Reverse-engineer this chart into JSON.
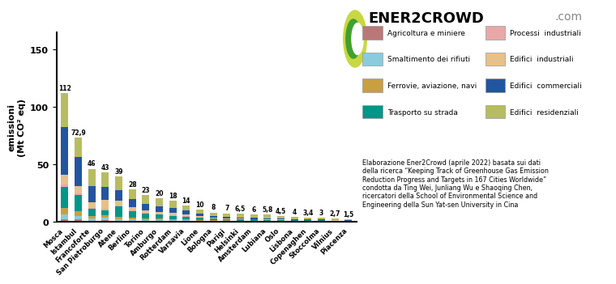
{
  "cities": [
    "Mosca",
    "Istambul",
    "Francoforte",
    "San Pietroburgo",
    "Atene",
    "Berlino",
    "Torino",
    "Amburgo",
    "Rotterdam",
    "Varsavia",
    "Lione",
    "Bologna",
    "Parigi",
    "Helsinki",
    "Amsterdam",
    "Lubiana",
    "Oslo",
    "Lisbona",
    "Copenaghen",
    "Stoccolma",
    "Vilnius",
    "Piacenza"
  ],
  "totals": [
    112,
    72.9,
    46,
    43,
    39,
    28,
    23,
    20,
    18,
    14,
    10,
    8,
    7,
    6.5,
    6,
    5.8,
    4.5,
    4,
    3.4,
    3,
    2.7,
    1.5
  ],
  "total_labels": [
    "112",
    "72,9",
    "46",
    "43",
    "39",
    "28",
    "23",
    "20",
    "18",
    "14",
    "10",
    "8",
    "7",
    "6,5",
    "6",
    "5,8",
    "4,5",
    "4",
    "3,4",
    "3",
    "2,7",
    "1,5"
  ],
  "segments": {
    "agricoltura": [
      2.0,
      1.5,
      0.5,
      1.0,
      0.5,
      0.5,
      0.3,
      0.3,
      0.2,
      0.2,
      0.15,
      0.1,
      0.1,
      0.08,
      0.08,
      0.08,
      0.06,
      0.06,
      0.05,
      0.05,
      0.04,
      0.03
    ],
    "smaltimento": [
      4.0,
      3.0,
      2.0,
      2.0,
      1.5,
      1.2,
      0.9,
      0.8,
      0.8,
      0.7,
      0.5,
      0.4,
      0.35,
      0.3,
      0.28,
      0.25,
      0.2,
      0.18,
      0.15,
      0.13,
      0.11,
      0.08
    ],
    "ferrovie": [
      6.0,
      4.5,
      2.5,
      2.5,
      1.8,
      1.8,
      1.3,
      1.2,
      1.0,
      0.9,
      0.7,
      0.55,
      0.45,
      0.38,
      0.35,
      0.3,
      0.22,
      0.22,
      0.18,
      0.16,
      0.13,
      0.09
    ],
    "trasporto": [
      18.0,
      14.0,
      6.0,
      4.0,
      9.0,
      5.5,
      4.2,
      3.5,
      3.0,
      2.5,
      2.0,
      1.3,
      1.1,
      1.0,
      0.9,
      0.72,
      0.62,
      0.6,
      0.52,
      0.44,
      0.4,
      0.25
    ],
    "processi": [
      2.5,
      1.5,
      1.0,
      1.5,
      0.8,
      0.7,
      0.5,
      0.45,
      0.35,
      0.28,
      0.18,
      0.13,
      0.11,
      0.09,
      0.09,
      0.09,
      0.07,
      0.07,
      0.06,
      0.05,
      0.04,
      0.03
    ],
    "edifici_ind": [
      8.0,
      6.0,
      5.0,
      8.0,
      4.5,
      3.0,
      2.3,
      2.2,
      1.8,
      1.4,
      1.0,
      0.72,
      0.59,
      0.45,
      0.42,
      0.38,
      0.32,
      0.28,
      0.24,
      0.21,
      0.17,
      0.12
    ],
    "edifici_com": [
      42.0,
      26.0,
      14.0,
      11.0,
      9.0,
      7.0,
      5.5,
      5.0,
      4.5,
      3.6,
      2.3,
      1.8,
      1.5,
      1.2,
      1.05,
      0.95,
      0.76,
      0.67,
      0.58,
      0.51,
      0.43,
      0.3
    ],
    "edifici_res": [
      29.5,
      16.4,
      15.0,
      13.0,
      11.9,
      8.3,
      8.0,
      6.55,
      6.35,
      4.42,
      3.17,
      2.7,
      2.76,
      3.0,
      2.83,
      3.02,
      2.23,
      1.94,
      1.64,
      1.45,
      1.38,
      0.6
    ]
  },
  "colors": {
    "agricoltura": "#b87878",
    "smaltimento": "#88ccdd",
    "ferrovie": "#c8a040",
    "trasporto": "#009688",
    "processi": "#e8a8a8",
    "edifici_ind": "#e8c08a",
    "edifici_com": "#2255a0",
    "edifici_res": "#b8bc60"
  },
  "legend_labels": {
    "agricoltura": "Agricoltura e miniere",
    "smaltimento": "Smaltimento dei rifiuti",
    "ferrovie": "Ferrovie, aviazione, navi",
    "trasporto": "Trasporto su strada",
    "processi": "Processi  industriali",
    "edifici_ind": "Edifici  industriali",
    "edifici_com": "Edifici  commerciali",
    "edifici_res": "Edifici  residenziali"
  },
  "ylabel": "emissioni\n(Mt CO² eq)",
  "yticks": [
    0,
    50,
    100,
    150
  ],
  "ylim": [
    0,
    165
  ],
  "background_color": "#ffffff",
  "ener2crowd_text": "ENER2CROWD",
  "ener2crowd_com": ".com",
  "citation": "Elaborazione Ener2Crowd (aprile 2022) basata sui dati\ndella ricerca “Keeping Track of Greenhouse Gas Emission\nReduction Progress and Targets in 167 Cities Worldwide”\ncondotta da Ting Wei, Junliang Wu e Shaoqing Chen,\nricercatori della School of Environmental Science and\nEngineering della Sun Yat-sen University in Cina"
}
